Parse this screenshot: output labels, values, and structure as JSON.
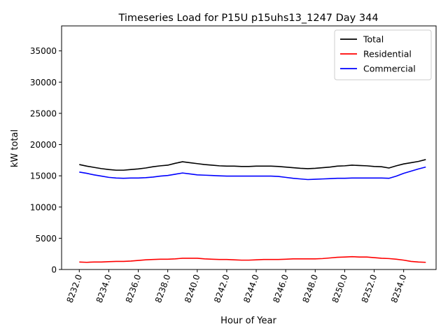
{
  "chart_data": {
    "type": "line",
    "title": "Timeseries Load for P15U p15uhs13_1247  Day 344",
    "xlabel": "Hour of Year",
    "ylabel": "kW total",
    "xlim": [
      8230.8,
      8256.2
    ],
    "ylim": [
      0,
      39000
    ],
    "grid": false,
    "legend_position": "top-right",
    "xticks": [
      8232,
      8234,
      8236,
      8238,
      8240,
      8242,
      8244,
      8246,
      8248,
      8250,
      8252,
      8254
    ],
    "xtick_labels": [
      "8232.0",
      "8234.0",
      "8236.0",
      "8238.0",
      "8240.0",
      "8242.0",
      "8244.0",
      "8246.0",
      "8248.0",
      "8250.0",
      "8252.0",
      "8254.0"
    ],
    "yticks": [
      0,
      5000,
      10000,
      15000,
      20000,
      25000,
      30000,
      35000
    ],
    "ytick_labels": [
      "0",
      "5000",
      "10000",
      "15000",
      "20000",
      "25000",
      "30000",
      "35000"
    ],
    "x": [
      8232.0,
      8232.5,
      8233.0,
      8233.5,
      8234.0,
      8234.5,
      8235.0,
      8235.5,
      8236.0,
      8236.5,
      8237.0,
      8237.5,
      8238.0,
      8238.5,
      8239.0,
      8239.5,
      8240.0,
      8240.5,
      8241.0,
      8241.5,
      8242.0,
      8242.5,
      8243.0,
      8243.5,
      8244.0,
      8244.5,
      8245.0,
      8245.5,
      8246.0,
      8246.5,
      8247.0,
      8247.5,
      8248.0,
      8248.5,
      8249.0,
      8249.5,
      8250.0,
      8250.5,
      8251.0,
      8251.5,
      8252.0,
      8252.5,
      8253.0,
      8253.5,
      8254.0,
      8254.5,
      8255.0,
      8255.5
    ],
    "series": [
      {
        "name": "Total",
        "color": "#000000",
        "values": [
          16800,
          16550,
          16350,
          16150,
          16000,
          15900,
          15900,
          16000,
          16100,
          16250,
          16450,
          16600,
          16700,
          17000,
          17250,
          17100,
          16950,
          16800,
          16700,
          16600,
          16550,
          16550,
          16500,
          16500,
          16550,
          16550,
          16550,
          16500,
          16400,
          16300,
          16200,
          16150,
          16200,
          16300,
          16400,
          16550,
          16600,
          16700,
          16650,
          16600,
          16500,
          16450,
          16250,
          16600,
          16900,
          17100,
          17300,
          17600
        ]
      },
      {
        "name": "Residential",
        "color": "#ff0000",
        "values": [
          1200,
          1150,
          1200,
          1200,
          1250,
          1300,
          1300,
          1350,
          1450,
          1550,
          1600,
          1650,
          1650,
          1700,
          1800,
          1800,
          1800,
          1700,
          1650,
          1600,
          1600,
          1550,
          1500,
          1500,
          1550,
          1600,
          1600,
          1600,
          1650,
          1700,
          1700,
          1700,
          1700,
          1750,
          1850,
          1950,
          2000,
          2050,
          2000,
          2000,
          1900,
          1800,
          1750,
          1650,
          1500,
          1300,
          1200,
          1150
        ]
      },
      {
        "name": "Commercial",
        "color": "#0000ff",
        "values": [
          15600,
          15400,
          15150,
          14950,
          14750,
          14650,
          14600,
          14650,
          14650,
          14700,
          14800,
          14950,
          15050,
          15250,
          15450,
          15300,
          15150,
          15100,
          15050,
          15000,
          14950,
          14950,
          14950,
          14950,
          14950,
          14950,
          14950,
          14900,
          14750,
          14600,
          14500,
          14400,
          14450,
          14500,
          14550,
          14600,
          14600,
          14650,
          14650,
          14650,
          14650,
          14650,
          14600,
          14950,
          15400,
          15750,
          16100,
          16400
        ]
      }
    ]
  }
}
